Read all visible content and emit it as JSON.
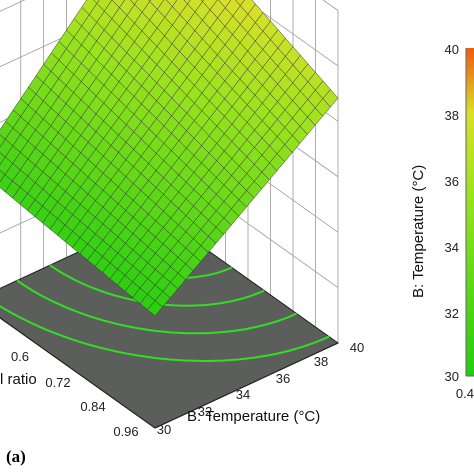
{
  "chart_data": {
    "type": "surface3d",
    "panel_label": "(a)",
    "x_axis": {
      "label": "B: Temperature (°C)",
      "ticks": [
        "30",
        "32",
        "34",
        "36",
        "38",
        "40"
      ],
      "range": [
        30,
        40
      ]
    },
    "y_axis": {
      "label": "l ratio",
      "ticks": [
        "0.6",
        "0.72",
        "0.84",
        "0.96"
      ],
      "range": [
        0.5,
        0.96
      ]
    },
    "colorbar": {
      "label": "B: Temperature (°C)",
      "ticks": [
        "30",
        "32",
        "34",
        "36",
        "38",
        "40"
      ],
      "range": [
        30,
        40
      ],
      "x_tick_visible": "0.4"
    },
    "surface": {
      "color_low": "#22cc11",
      "color_mid": "#c8e628",
      "color_high": "#ee6a14",
      "grid_lines": "#333333",
      "floor_color": "#5c5e5c",
      "contour_green": "#33dd22",
      "contour_yellow": "#e0e030",
      "contour_levels": 5
    },
    "grid": true
  }
}
